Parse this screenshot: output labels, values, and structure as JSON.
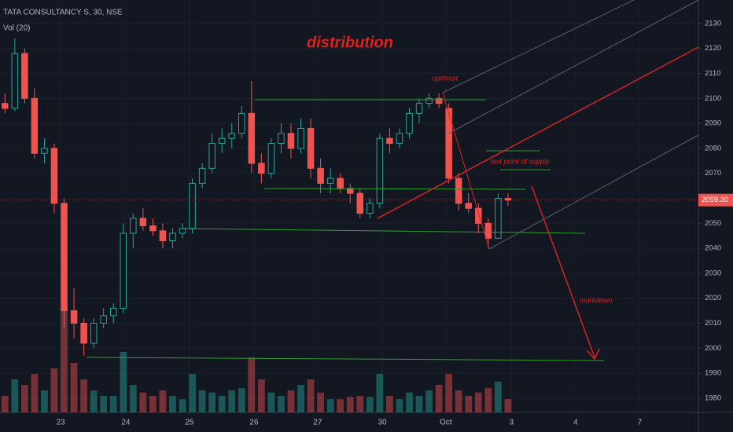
{
  "chart_data": {
    "type": "candlestick",
    "title": "TATA CONSULTANCY S, 30, NSE",
    "subtitle": "Vol (20)",
    "annotations": [
      "distribution",
      "upthrust",
      "last point of supply",
      "markdown"
    ],
    "up_color": "#26a69a",
    "down_color": "#ef5350",
    "grid": true,
    "ylim": [
      1974.3,
      2139.4
    ],
    "yticks": [
      1980,
      1990,
      2000,
      2010,
      2020,
      2030,
      2040,
      2050,
      2060,
      2070,
      2080,
      2090,
      2100,
      2110,
      2120,
      2130
    ],
    "xlim": [
      0,
      141.6
    ],
    "xticks": [
      {
        "value": 12.3,
        "label": "23"
      },
      {
        "value": 25.5,
        "label": "24"
      },
      {
        "value": 38.4,
        "label": "25"
      },
      {
        "value": 51.5,
        "label": "26"
      },
      {
        "value": 64.4,
        "label": "27"
      },
      {
        "value": 77.5,
        "label": "30"
      },
      {
        "value": 90.4,
        "label": "Oct"
      },
      {
        "value": 103.7,
        "label": "3"
      },
      {
        "value": 116.7,
        "label": "4"
      },
      {
        "value": 129.7,
        "label": "7"
      }
    ],
    "last_price": {
      "value": 2059.3,
      "label": "2059.30"
    },
    "volume_lim": [
      0,
      100
    ],
    "x": [
      1,
      3,
      5,
      7,
      9,
      11,
      13,
      15,
      17,
      19,
      21,
      23,
      25,
      27,
      29,
      31,
      33,
      35,
      37,
      39,
      41,
      43,
      45,
      47,
      49,
      51,
      53,
      55,
      57,
      59,
      61,
      63,
      65,
      67,
      69,
      71,
      73,
      75,
      77,
      79,
      81,
      83,
      85,
      87,
      89,
      91,
      93,
      95,
      97,
      99,
      101,
      103
    ],
    "open": [
      2098,
      2096,
      2118,
      2100,
      2078,
      2080,
      2058,
      2015,
      2010,
      2002,
      2010,
      2013,
      2016,
      2046,
      2052,
      2049,
      2047,
      2043,
      2046,
      2048,
      2066,
      2072,
      2082,
      2084,
      2086,
      2094,
      2074,
      2070,
      2082,
      2086,
      2080,
      2088,
      2072,
      2066,
      2068,
      2064,
      2062,
      2054,
      2058,
      2084,
      2082,
      2086,
      2094,
      2098,
      2100,
      2096,
      2068,
      2058,
      2056,
      2050,
      2044,
      2060
    ],
    "high": [
      2102,
      2124,
      2120,
      2104,
      2084,
      2082,
      2060,
      2024,
      2012,
      2012,
      2016,
      2018,
      2050,
      2054,
      2056,
      2052,
      2050,
      2048,
      2050,
      2068,
      2074,
      2086,
      2088,
      2090,
      2097,
      2107,
      2078,
      2084,
      2090,
      2090,
      2092,
      2092,
      2076,
      2072,
      2070,
      2066,
      2064,
      2060,
      2086,
      2088,
      2088,
      2096,
      2100,
      2102,
      2102,
      2098,
      2070,
      2062,
      2058,
      2052,
      2062,
      2062
    ],
    "low": [
      2094,
      2095,
      2098,
      2076,
      2074,
      2054,
      2008,
      2004,
      1997,
      2000,
      2008,
      2010,
      2014,
      2040,
      2047,
      2045,
      2040,
      2040,
      2044,
      2046,
      2064,
      2070,
      2078,
      2080,
      2084,
      2070,
      2066,
      2068,
      2078,
      2076,
      2078,
      2068,
      2062,
      2062,
      2062,
      2058,
      2052,
      2052,
      2056,
      2078,
      2080,
      2084,
      2090,
      2096,
      2096,
      2066,
      2055,
      2054,
      2046,
      2040,
      2044,
      2057
    ],
    "close": [
      2096,
      2118,
      2100,
      2078,
      2080,
      2058,
      2015,
      2010,
      2002,
      2010,
      2013,
      2016,
      2046,
      2052,
      2049,
      2047,
      2043,
      2046,
      2048,
      2066,
      2072,
      2082,
      2084,
      2086,
      2094,
      2074,
      2070,
      2082,
      2086,
      2080,
      2088,
      2072,
      2066,
      2068,
      2064,
      2062,
      2054,
      2058,
      2084,
      2082,
      2086,
      2094,
      2098,
      2100,
      2098,
      2068,
      2058,
      2056,
      2050,
      2044,
      2060,
      2059.3
    ],
    "volume": [
      15,
      30,
      25,
      35,
      20,
      40,
      95,
      45,
      30,
      20,
      15,
      15,
      55,
      25,
      18,
      15,
      20,
      15,
      12,
      35,
      20,
      18,
      15,
      20,
      22,
      50,
      30,
      18,
      15,
      20,
      25,
      30,
      18,
      12,
      12,
      14,
      15,
      14,
      35,
      15,
      12,
      18,
      15,
      20,
      25,
      35,
      20,
      15,
      18,
      22,
      28,
      12
    ]
  }
}
